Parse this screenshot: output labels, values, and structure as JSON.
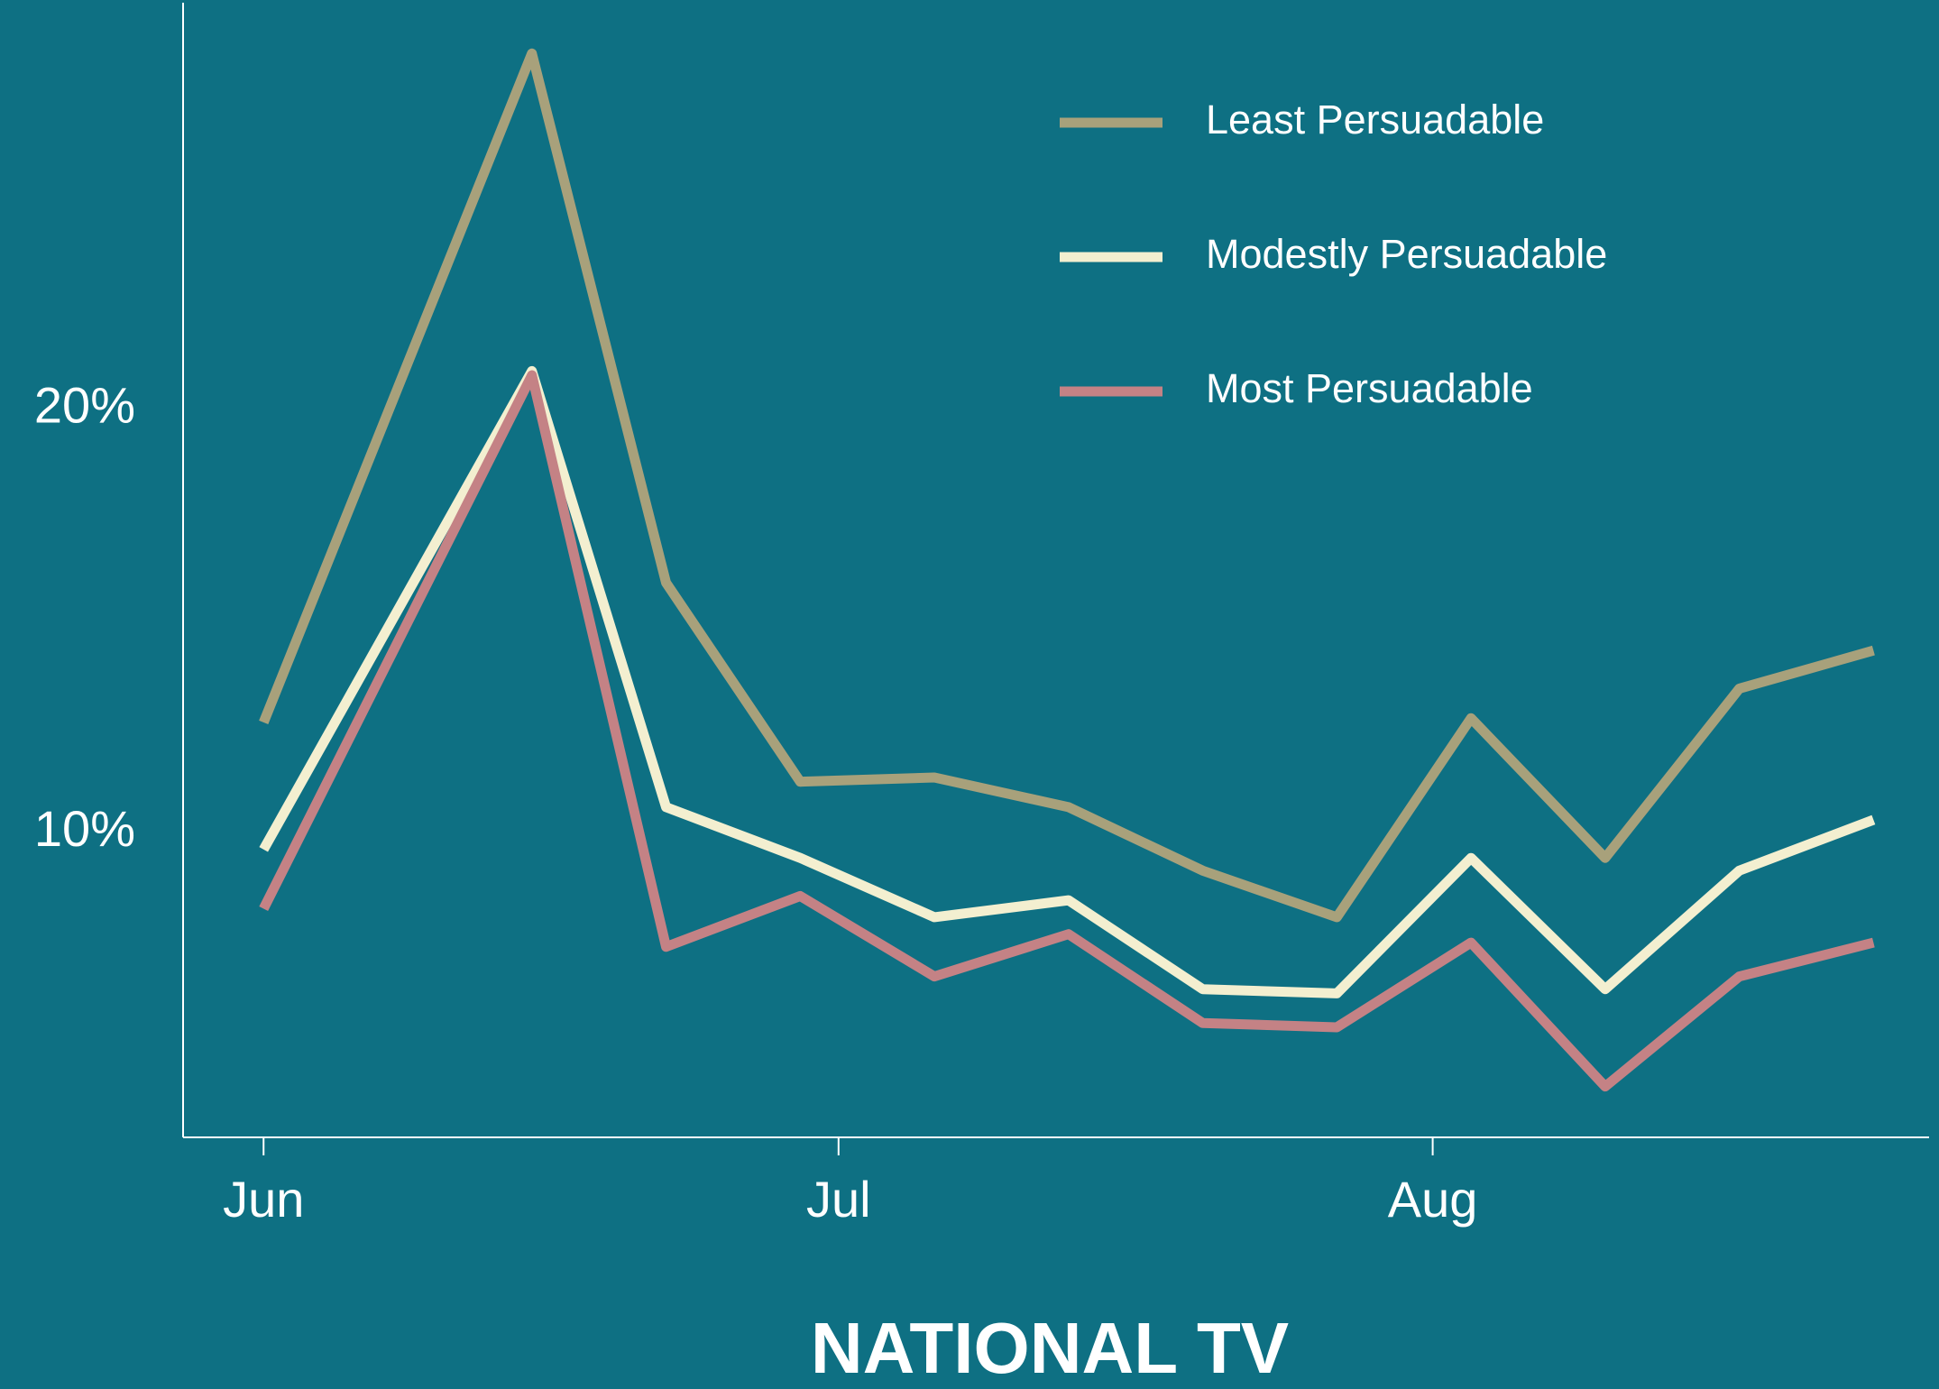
{
  "chart_data": {
    "type": "line",
    "xlabel": "NATIONAL TV",
    "x": [
      0,
      14,
      21,
      28,
      35,
      42,
      49,
      56,
      63,
      70,
      77,
      84
    ],
    "xlim": [
      -4.2,
      86.9
    ],
    "xticks": [
      {
        "value": 0,
        "label": "Jun"
      },
      {
        "value": 30,
        "label": "Jul"
      },
      {
        "value": 61,
        "label": "Aug"
      }
    ],
    "ylim": [
      2.8,
      29.6
    ],
    "yticks": [
      {
        "value": 10,
        "label": "10%"
      },
      {
        "value": 20,
        "label": "20%"
      }
    ],
    "legend": "upper-right",
    "series": [
      {
        "name": "Least Persuadable",
        "color": "#a8a17b",
        "values": [
          12.6,
          28.4,
          15.9,
          11.2,
          11.3,
          10.6,
          9.1,
          8.0,
          12.7,
          9.4,
          13.4,
          14.3
        ]
      },
      {
        "name": "Modestly Persuadable",
        "color": "#f3efd0",
        "values": [
          9.6,
          20.9,
          10.6,
          9.4,
          8.0,
          8.4,
          6.3,
          6.2,
          9.4,
          6.3,
          9.1,
          10.3
        ]
      },
      {
        "name": "Most Persuadable",
        "color": "#c48285",
        "values": [
          8.2,
          20.8,
          7.3,
          8.5,
          6.6,
          7.6,
          5.5,
          5.4,
          7.4,
          4.0,
          6.6,
          7.4
        ]
      }
    ]
  }
}
